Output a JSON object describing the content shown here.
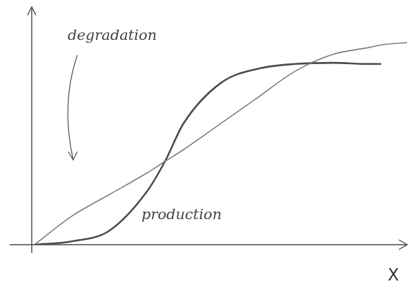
{
  "chart_data": {
    "type": "line",
    "x_label": "X",
    "x": [
      0,
      1,
      2,
      3,
      3.5,
      4,
      5,
      6,
      7,
      8,
      9,
      9.3,
      10
    ],
    "series": [
      {
        "name": "degradation",
        "color": "#7a7a7a",
        "values": [
          0,
          1.2,
          2.1,
          3.0,
          3.5,
          4.0,
          5.1,
          6.2,
          7.3,
          8.0,
          8.3,
          8.4,
          8.5
        ]
      },
      {
        "name": "production",
        "color": "#4a4a4a",
        "values": [
          0,
          0.14,
          0.58,
          2.2,
          3.5,
          5.1,
          6.8,
          7.4,
          7.6,
          7.65,
          7.6,
          7.6,
          null
        ]
      }
    ],
    "xlim": [
      0,
      10
    ],
    "ylim": [
      0,
      10
    ],
    "grid": false,
    "tick_labels": false
  }
}
